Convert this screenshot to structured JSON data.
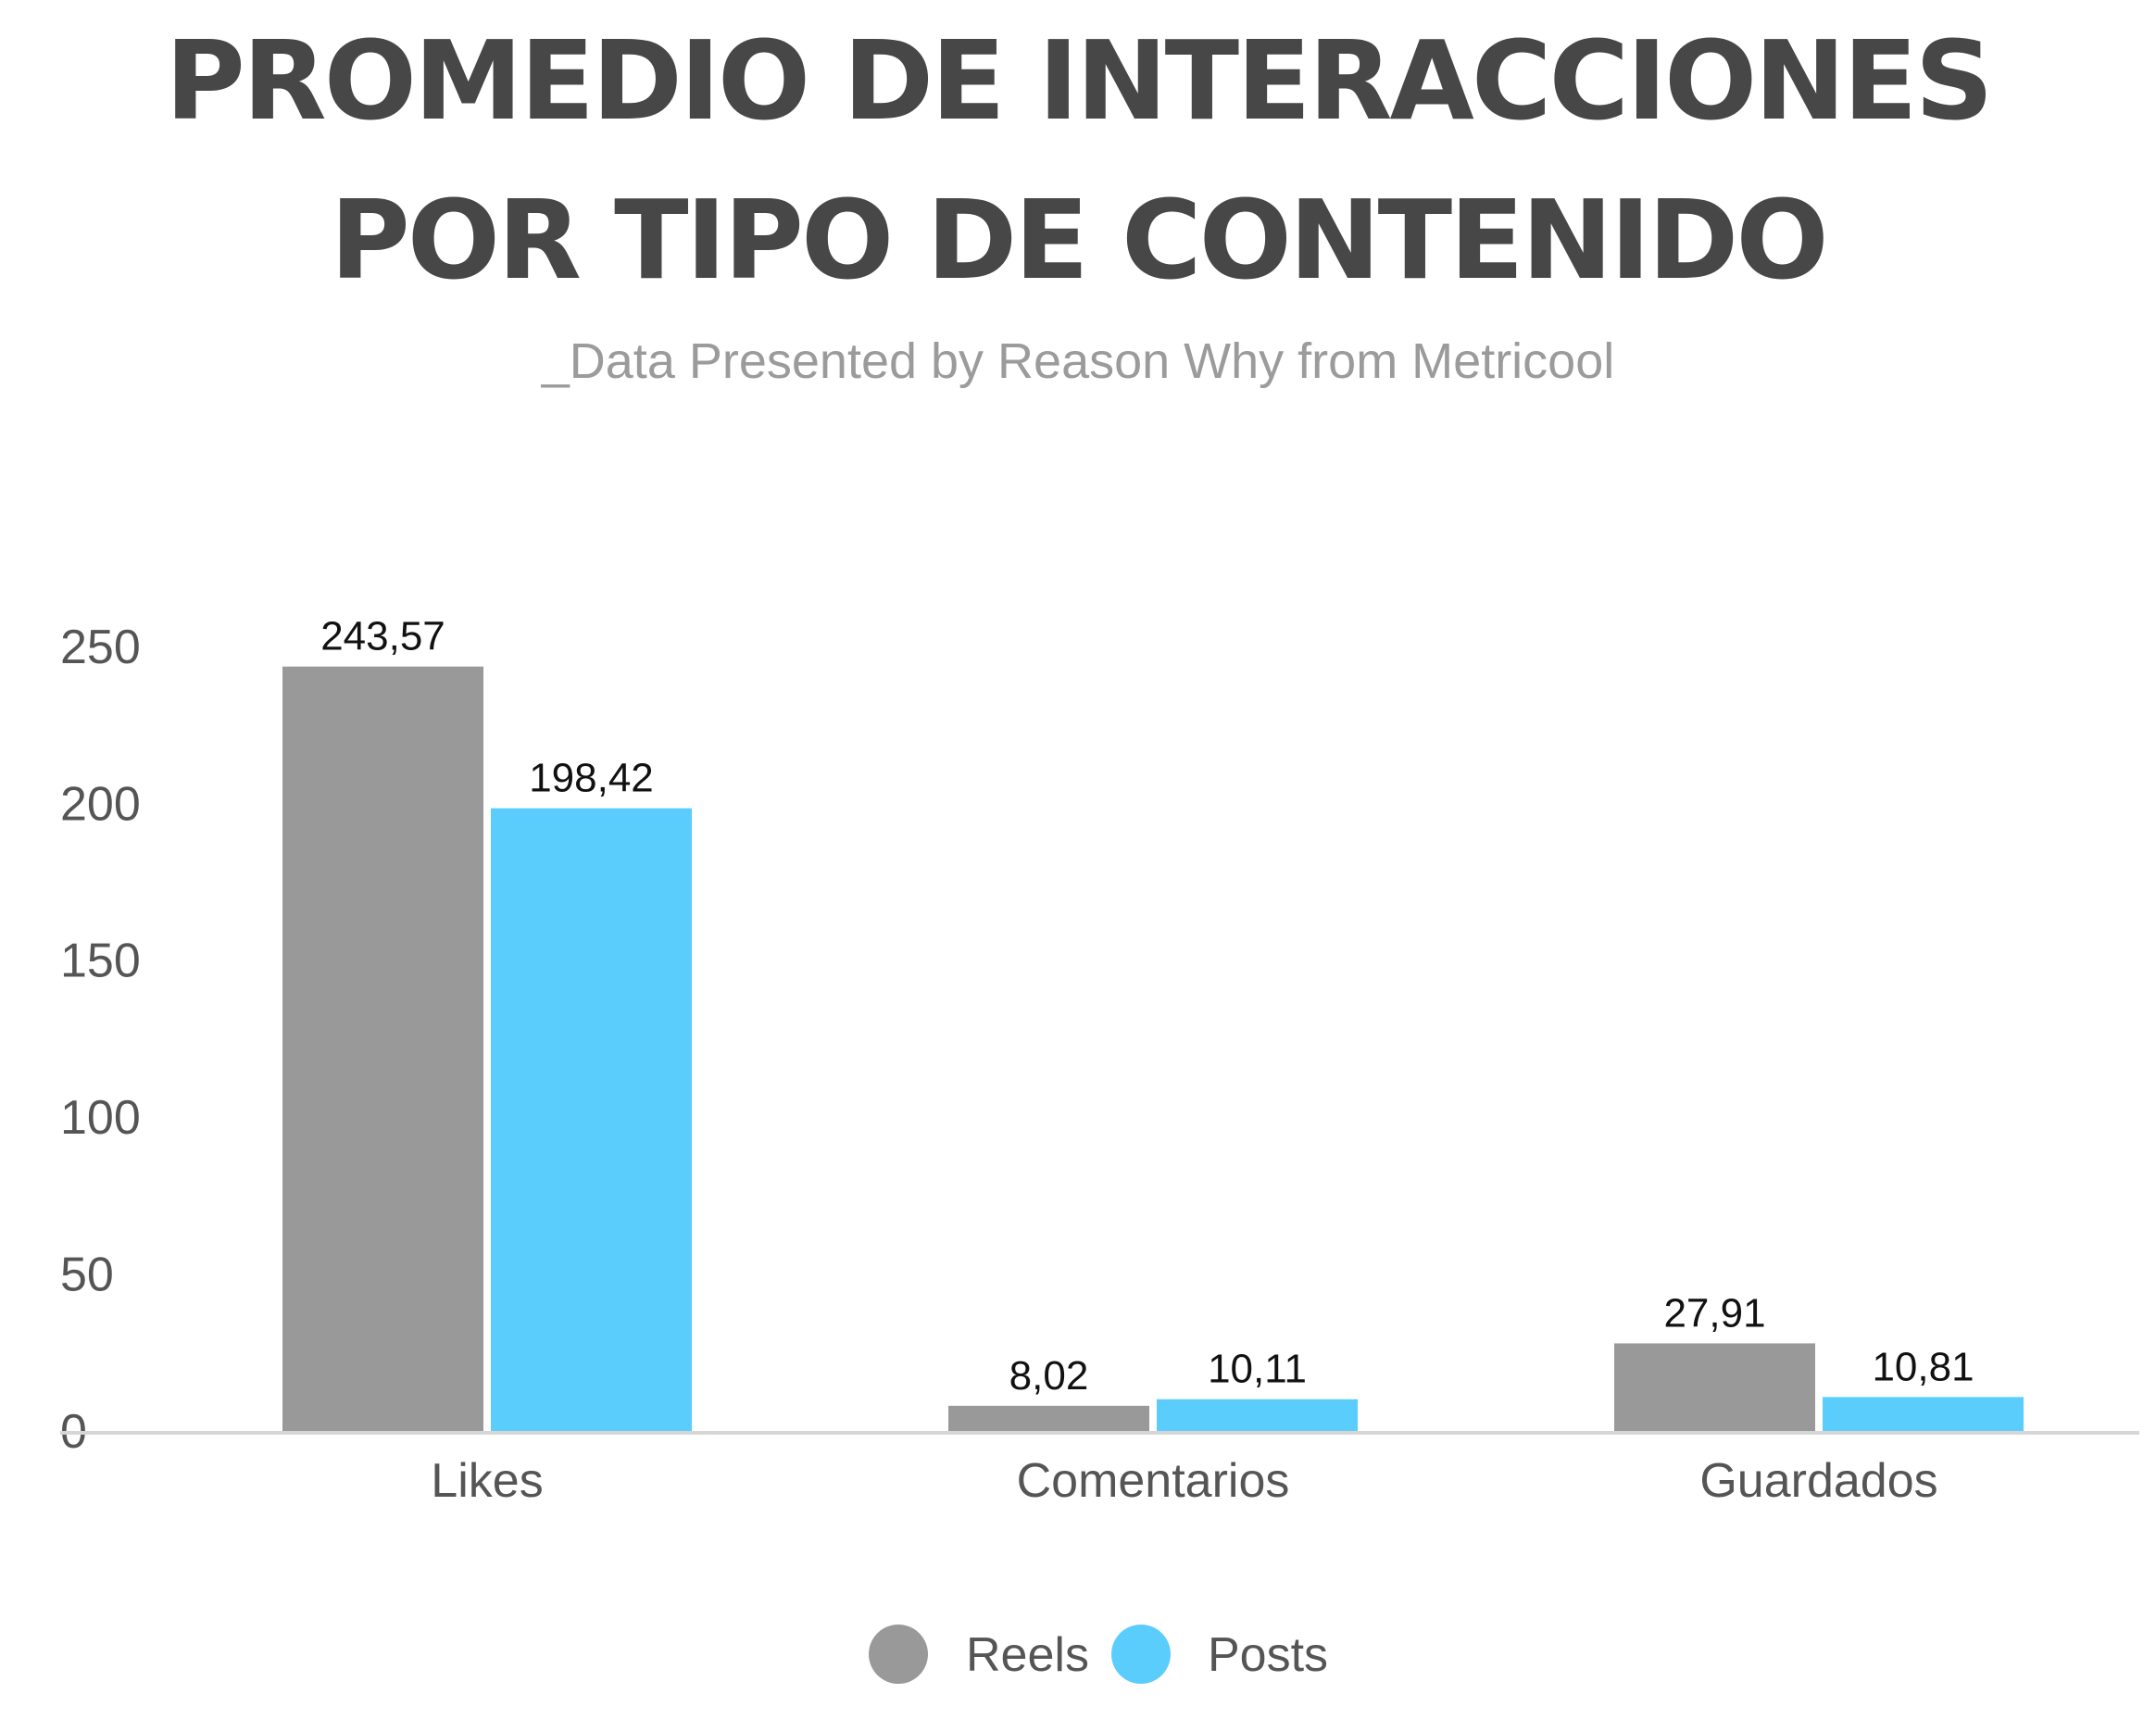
{
  "chart_data": {
    "type": "bar",
    "title_lines": [
      "PROMEDIO DE INTERACCIONES",
      "POR TIPO DE CONTENIDO"
    ],
    "subtitle": "_Data Presented by Reason Why from Metricool",
    "categories": [
      "Likes",
      "Comentarios",
      "Guardados"
    ],
    "series": [
      {
        "name": "Reels",
        "values": [
          243.57,
          8.02,
          27.91
        ],
        "labels": [
          "243,57",
          "8,02",
          "27,91"
        ],
        "color": "#999999"
      },
      {
        "name": "Posts",
        "values": [
          198.42,
          10.11,
          10.81
        ],
        "labels": [
          "198,42",
          "10,11",
          "10,81"
        ],
        "color": "#5bcdfd"
      }
    ],
    "yticks": [
      0,
      50,
      100,
      150,
      200,
      250
    ],
    "ylim": [
      0,
      260
    ],
    "grid": false,
    "legend_position": "bottom-center",
    "axis_color": "#d6d6d6"
  }
}
